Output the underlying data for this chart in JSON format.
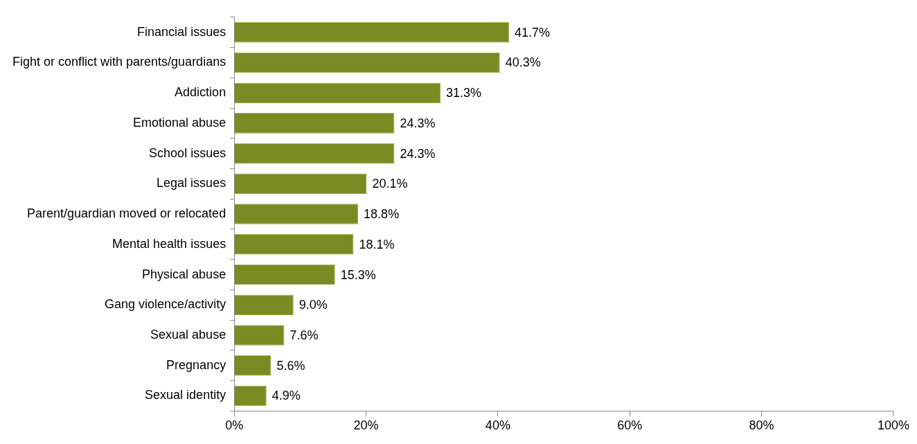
{
  "chart_data": {
    "type": "bar",
    "orientation": "horizontal",
    "categories": [
      "Financial issues",
      "Fight or conflict with parents/guardians",
      "Addiction",
      "Emotional abuse",
      "School issues",
      "Legal issues",
      "Parent/guardian moved or relocated",
      "Mental health issues",
      "Physical abuse",
      "Gang violence/activity",
      "Sexual abuse",
      "Pregnancy",
      "Sexual identity"
    ],
    "values": [
      41.7,
      40.3,
      31.3,
      24.3,
      24.3,
      20.1,
      18.8,
      18.1,
      15.3,
      9.0,
      7.6,
      5.6,
      4.9
    ],
    "value_labels": [
      "41.7%",
      "40.3%",
      "31.3%",
      "24.3%",
      "24.3%",
      "20.1%",
      "18.8%",
      "18.1%",
      "15.3%",
      "9.0%",
      "7.6%",
      "5.6%",
      "4.9%"
    ],
    "color": "#7b8b23",
    "xlim": [
      0,
      100
    ],
    "xticks": [
      {
        "value": 0,
        "label": "0%"
      },
      {
        "value": 20,
        "label": "20%"
      },
      {
        "value": 40,
        "label": "40%"
      },
      {
        "value": 60,
        "label": "60%"
      },
      {
        "value": 80,
        "label": "80%"
      },
      {
        "value": 100,
        "label": "100%"
      }
    ],
    "grid": false,
    "legend": false
  }
}
